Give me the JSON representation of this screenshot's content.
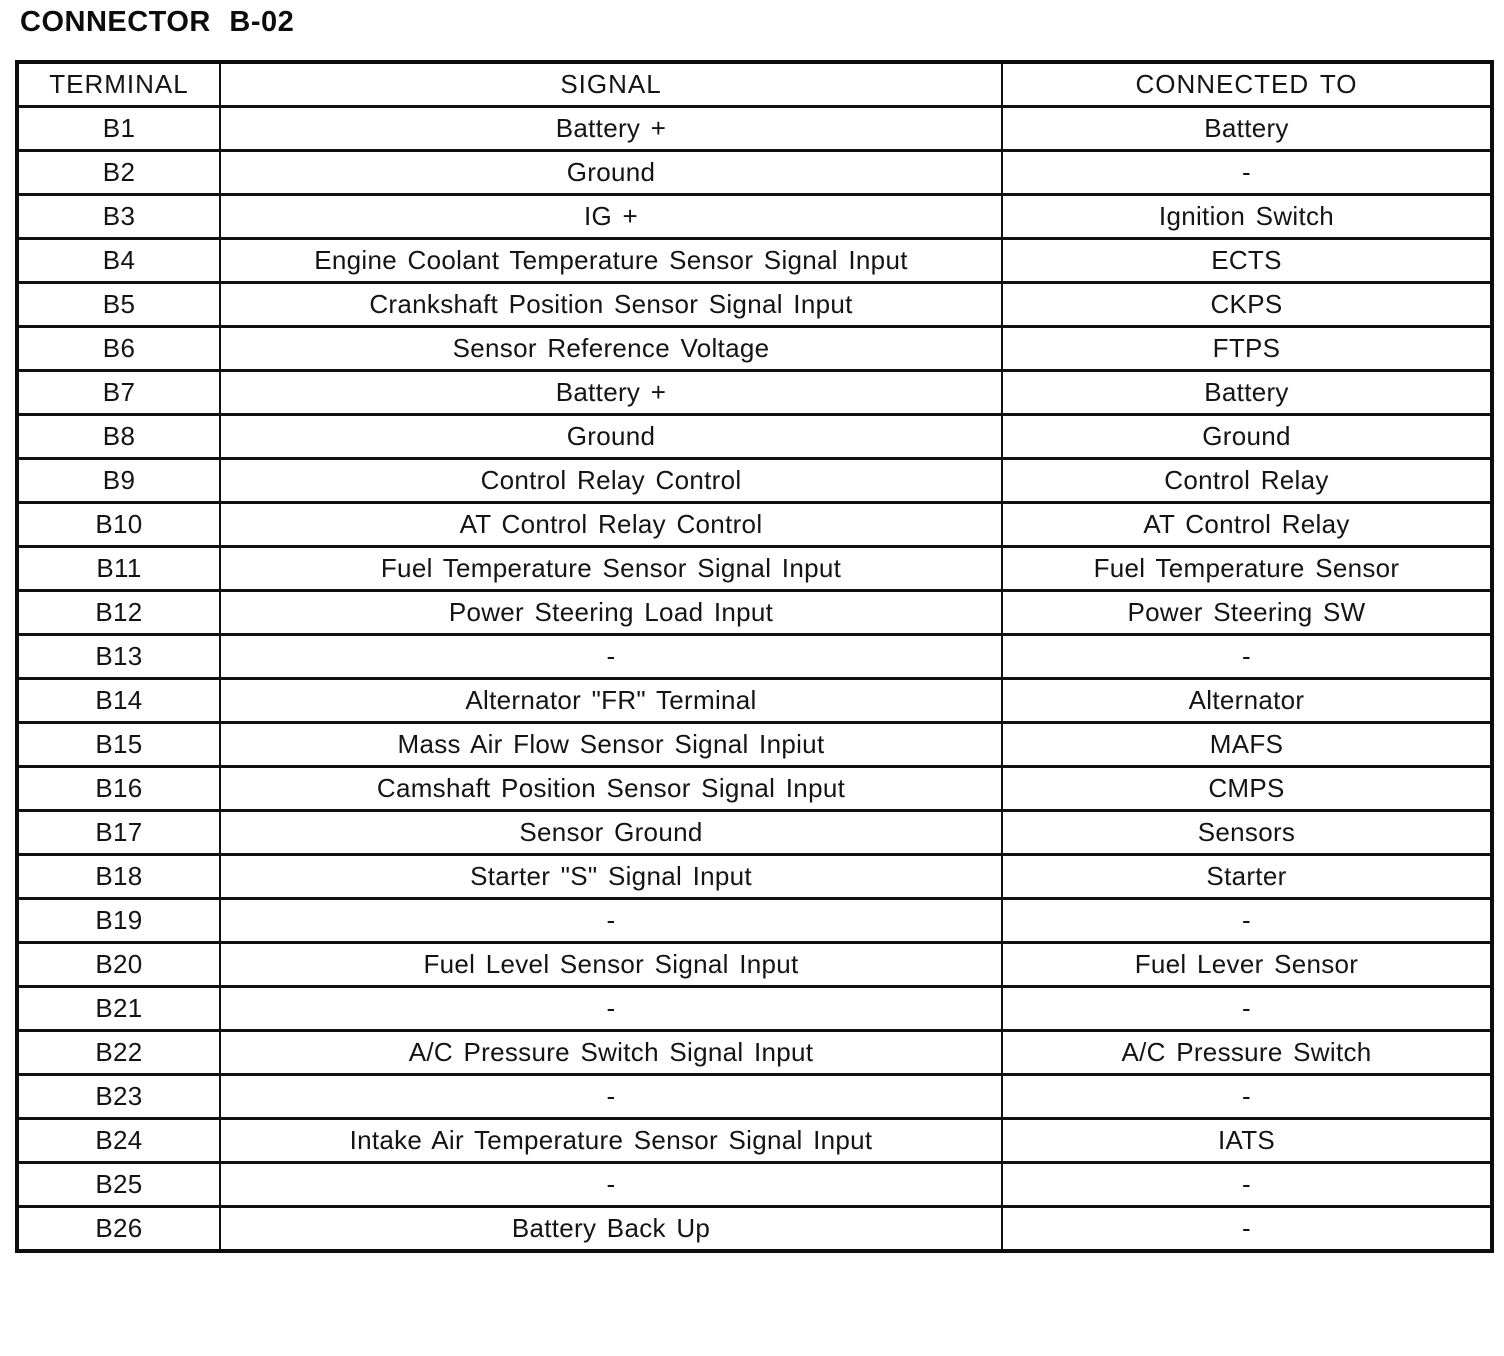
{
  "page": {
    "title": "CONNECTOR B-02"
  },
  "table": {
    "headers": [
      "TERMINAL",
      "SIGNAL",
      "CONNECTED TO"
    ],
    "rows": [
      {
        "terminal": "B1",
        "signal": "Battery +",
        "connected_to": "Battery"
      },
      {
        "terminal": "B2",
        "signal": "Ground",
        "connected_to": "-"
      },
      {
        "terminal": "B3",
        "signal": "IG +",
        "connected_to": "Ignition Switch"
      },
      {
        "terminal": "B4",
        "signal": "Engine Coolant Temperature Sensor Signal Input",
        "connected_to": "ECTS"
      },
      {
        "terminal": "B5",
        "signal": "Crankshaft Position Sensor Signal Input",
        "connected_to": "CKPS"
      },
      {
        "terminal": "B6",
        "signal": "Sensor Reference Voltage",
        "connected_to": "FTPS"
      },
      {
        "terminal": "B7",
        "signal": "Battery +",
        "connected_to": "Battery"
      },
      {
        "terminal": "B8",
        "signal": "Ground",
        "connected_to": "Ground"
      },
      {
        "terminal": "B9",
        "signal": "Control Relay Control",
        "connected_to": "Control Relay"
      },
      {
        "terminal": "B10",
        "signal": "AT Control Relay Control",
        "connected_to": "AT Control Relay"
      },
      {
        "terminal": "B11",
        "signal": "Fuel Temperature Sensor Signal Input",
        "connected_to": "Fuel Temperature Sensor"
      },
      {
        "terminal": "B12",
        "signal": "Power Steering Load Input",
        "connected_to": "Power Steering SW"
      },
      {
        "terminal": "B13",
        "signal": "-",
        "connected_to": "-"
      },
      {
        "terminal": "B14",
        "signal": "Alternator \"FR\" Terminal",
        "connected_to": "Alternator"
      },
      {
        "terminal": "B15",
        "signal": "Mass Air Flow Sensor Signal Inpiut",
        "connected_to": "MAFS"
      },
      {
        "terminal": "B16",
        "signal": "Camshaft Position Sensor Signal Input",
        "connected_to": "CMPS"
      },
      {
        "terminal": "B17",
        "signal": "Sensor Ground",
        "connected_to": "Sensors"
      },
      {
        "terminal": "B18",
        "signal": "Starter \"S\" Signal Input",
        "connected_to": "Starter"
      },
      {
        "terminal": "B19",
        "signal": "-",
        "connected_to": "-"
      },
      {
        "terminal": "B20",
        "signal": "Fuel Level Sensor Signal Input",
        "connected_to": "Fuel Lever Sensor"
      },
      {
        "terminal": "B21",
        "signal": "-",
        "connected_to": "-"
      },
      {
        "terminal": "B22",
        "signal": "A/C Pressure Switch Signal Input",
        "connected_to": "A/C Pressure Switch"
      },
      {
        "terminal": "B23",
        "signal": "-",
        "connected_to": "-"
      },
      {
        "terminal": "B24",
        "signal": "Intake Air Temperature Sensor Signal Input",
        "connected_to": "IATS"
      },
      {
        "terminal": "B25",
        "signal": "-",
        "connected_to": "-"
      },
      {
        "terminal": "B26",
        "signal": "Battery Back Up",
        "connected_to": "-"
      }
    ]
  }
}
